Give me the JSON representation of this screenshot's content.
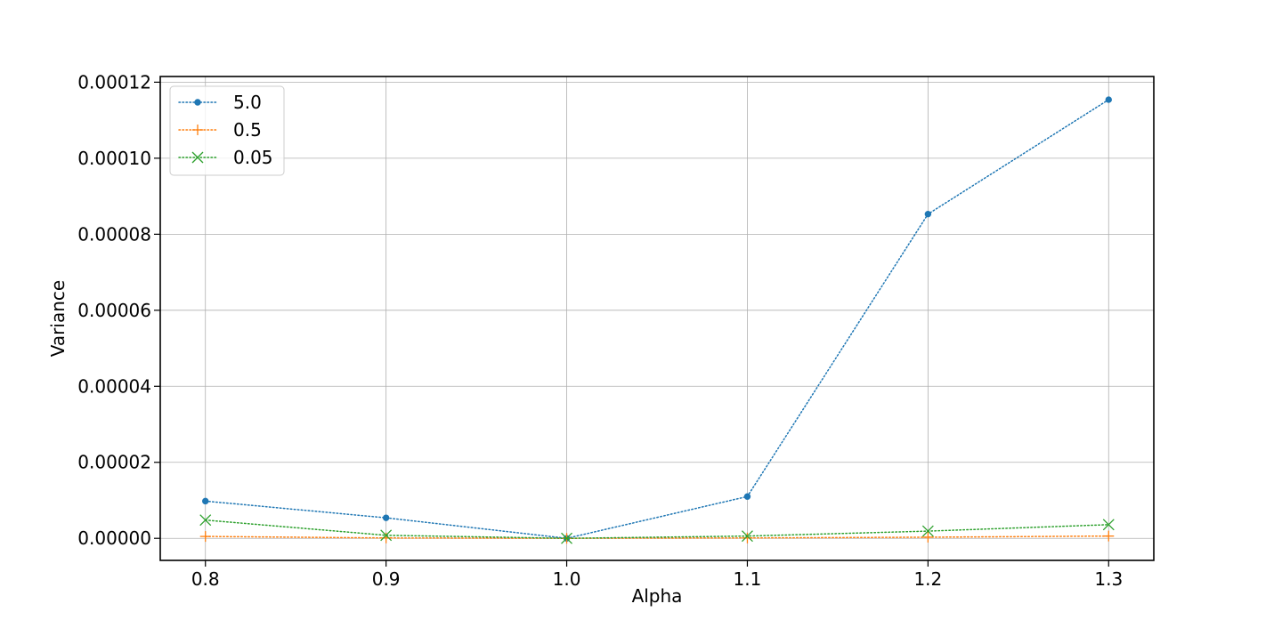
{
  "chart_data": {
    "type": "line",
    "title": "",
    "xlabel": "Alpha",
    "ylabel": "Variance",
    "x": [
      0.8,
      0.9,
      1.0,
      1.1,
      1.2,
      1.3
    ],
    "x_tick_labels": [
      "0.8",
      "0.9",
      "1.0",
      "1.1",
      "1.2",
      "1.3"
    ],
    "xlim": [
      0.775,
      1.325
    ],
    "ylim": [
      -5.8e-06,
      0.0001215
    ],
    "y_ticks": [
      0,
      2e-05,
      4e-05,
      6e-05,
      8e-05,
      0.0001,
      0.00012
    ],
    "y_tick_labels": [
      "0.00000",
      "0.00002",
      "0.00004",
      "0.00006",
      "0.00008",
      "0.00010",
      "0.00012"
    ],
    "grid": true,
    "legend_position": "top-left",
    "series": [
      {
        "name": "5.0",
        "color": "#1f77b4",
        "marker": "circle",
        "line_style": "dotted",
        "values": [
          9.8e-06,
          5.4e-06,
          0.0,
          1.1e-05,
          8.53e-05,
          0.0001154
        ]
      },
      {
        "name": "0.5",
        "color": "#ff7f0e",
        "marker": "plus",
        "line_style": "dotted",
        "values": [
          5e-07,
          1e-07,
          0.0,
          1e-07,
          3e-07,
          6e-07
        ]
      },
      {
        "name": "0.05",
        "color": "#2ca02c",
        "marker": "x",
        "line_style": "dotted",
        "values": [
          4.8e-06,
          8e-07,
          0.0,
          6e-07,
          1.9e-06,
          3.6e-06
        ]
      }
    ]
  }
}
